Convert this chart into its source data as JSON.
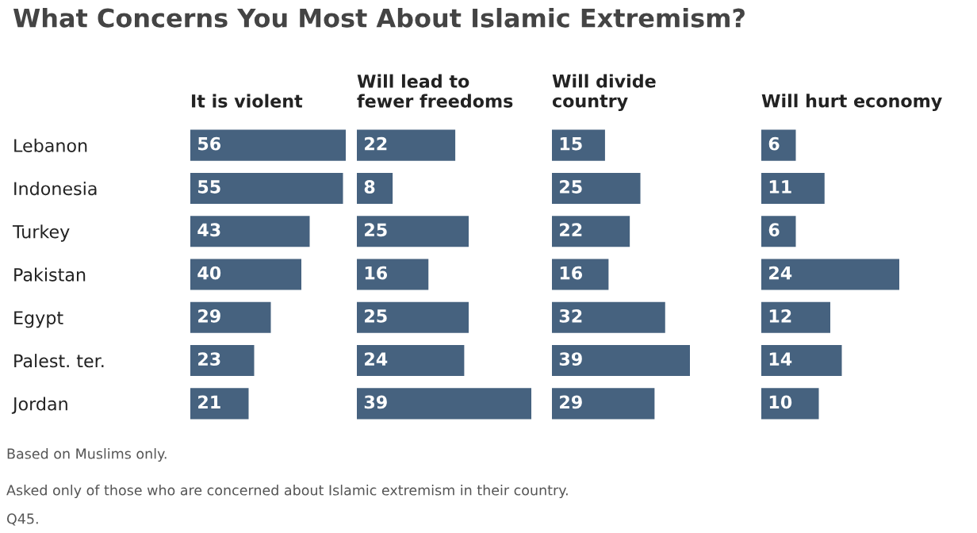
{
  "chart_data": [
    {
      "type": "bar",
      "orientation": "horizontal",
      "title": "What Concerns You Most About Islamic Extremism?",
      "subtitle": "It is violent",
      "categories": [
        "Lebanon",
        "Indonesia",
        "Turkey",
        "Pakistan",
        "Egypt",
        "Palest. ter.",
        "Jordan"
      ],
      "values": [
        56,
        55,
        43,
        40,
        29,
        23,
        21
      ],
      "color": "#46627f",
      "data_labels": true,
      "tick_labels": "y",
      "annotations": [
        "Based on Muslims only.",
        "Asked only of those who are concerned about Islamic extremism in their country.",
        "Q45."
      ]
    },
    {
      "type": "bar",
      "orientation": "horizontal",
      "subtitle": "Will lead to\nfewer freedoms",
      "values": [
        22,
        8,
        25,
        16,
        25,
        24,
        39
      ],
      "color": "#46627f",
      "data_labels": true,
      "tick_labels": false
    },
    {
      "type": "bar",
      "orientation": "horizontal",
      "subtitle": "Will divide\ncountry",
      "values": [
        15,
        25,
        22,
        16,
        32,
        39,
        29
      ],
      "color": "#46627f",
      "data_labels": true,
      "tick_labels": false
    },
    {
      "type": "bar",
      "orientation": "horizontal",
      "subtitle": "Will hurt economy",
      "values": [
        6,
        11,
        6,
        24,
        12,
        14,
        10
      ],
      "color": "#46627f",
      "data_labels": true,
      "tick_labels": false
    }
  ]
}
